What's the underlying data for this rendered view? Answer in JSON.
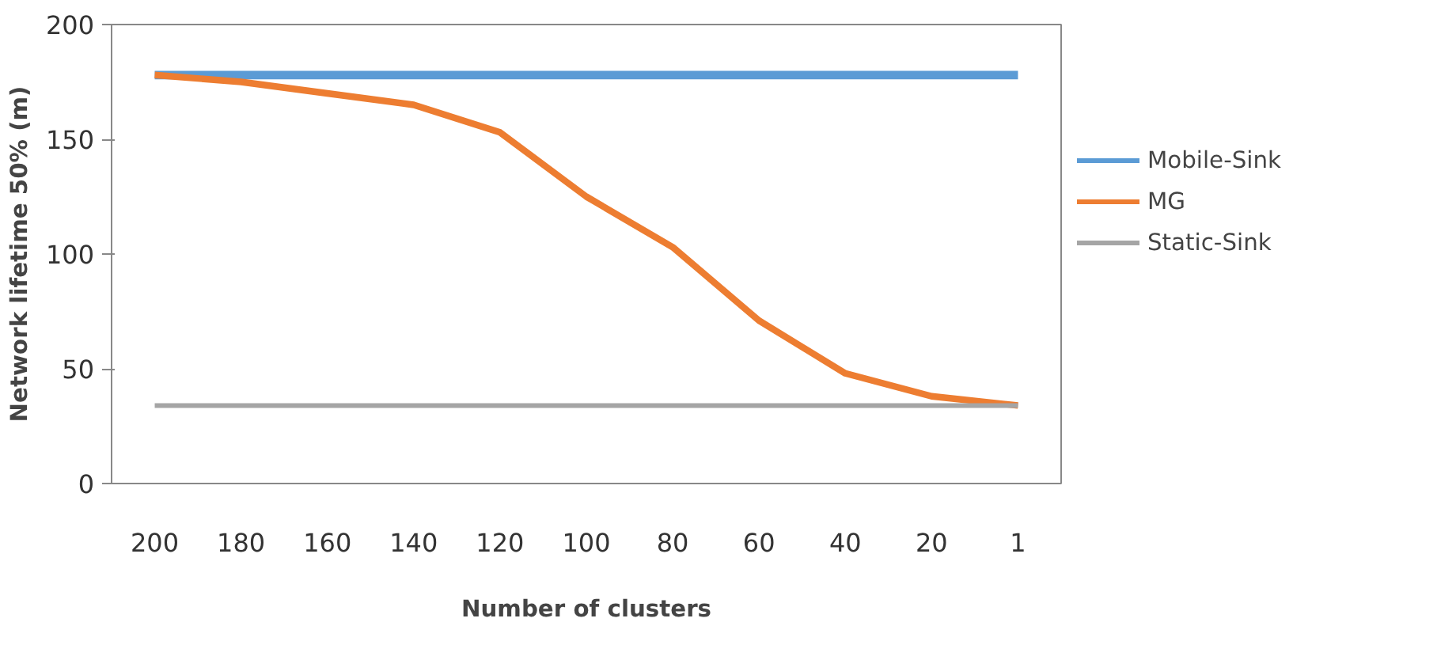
{
  "chart_data": {
    "type": "line",
    "xlabel": "Number of clusters",
    "ylabel": "Network lifetime 50% (m)",
    "categories": [
      "200",
      "180",
      "160",
      "140",
      "120",
      "100",
      "80",
      "60",
      "40",
      "20",
      "1"
    ],
    "series": [
      {
        "name": "Mobile-Sink",
        "color": "#5b9bd5",
        "values": [
          178,
          178,
          178,
          178,
          178,
          178,
          178,
          178,
          178,
          178,
          178
        ]
      },
      {
        "name": "MG",
        "color": "#ed7d31",
        "values": [
          178,
          175,
          170,
          165,
          153,
          125,
          103,
          71,
          48,
          38,
          34
        ]
      },
      {
        "name": "Static-Sink",
        "color": "#a5a5a5",
        "values": [
          34,
          34,
          34,
          34,
          34,
          34,
          34,
          34,
          34,
          34,
          34
        ]
      }
    ],
    "ylim": [
      0,
      200
    ],
    "yticks": [
      0,
      50,
      100,
      150,
      200
    ],
    "grid": false,
    "legend": "right"
  }
}
